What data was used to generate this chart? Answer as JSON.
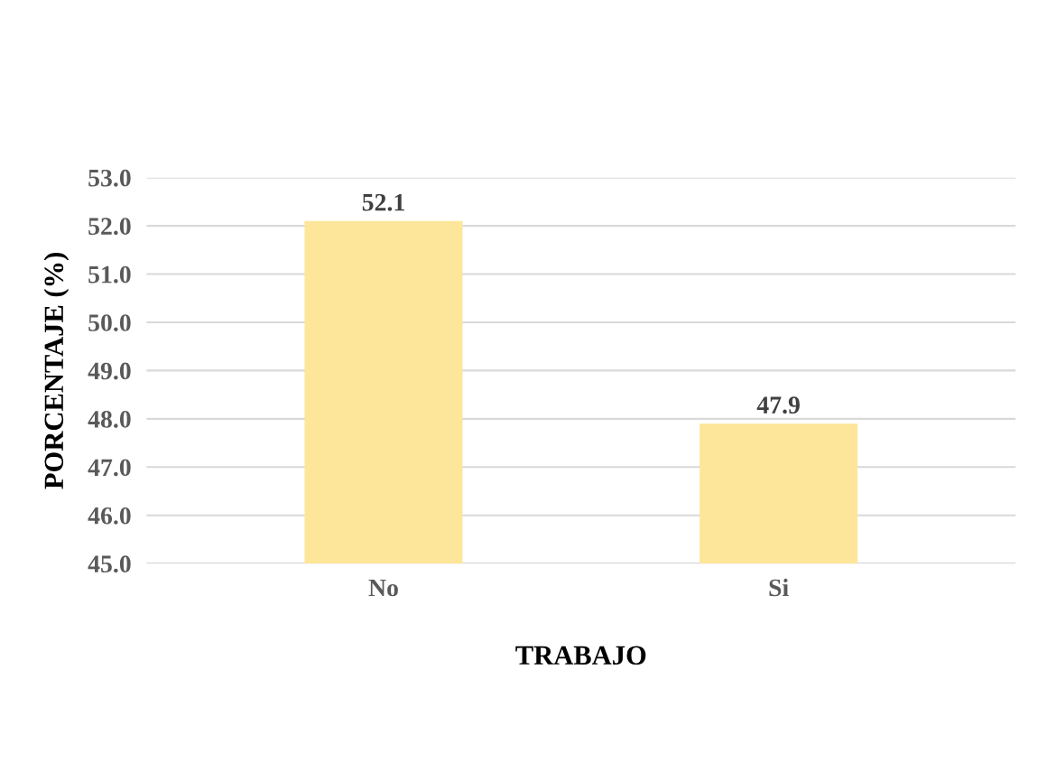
{
  "chart_data": {
    "type": "bar",
    "xlabel": "TRABAJO",
    "ylabel": "PORCENTAJE (%)",
    "categories": [
      "No",
      "Si"
    ],
    "values": [
      52.1,
      47.9
    ],
    "color": "#fde699",
    "ylim": [
      45,
      53
    ],
    "yticks": [
      {
        "value": 45,
        "label": "45.0"
      },
      {
        "value": 46,
        "label": "46.0"
      },
      {
        "value": 47,
        "label": "47.0"
      },
      {
        "value": 48,
        "label": "48.0"
      },
      {
        "value": 49,
        "label": "49.0"
      },
      {
        "value": 50,
        "label": "50.0"
      },
      {
        "value": 51,
        "label": "51.0"
      },
      {
        "value": 52,
        "label": "52.0"
      },
      {
        "value": 53,
        "label": "53.0"
      }
    ],
    "grid": "y",
    "data_labels": true
  }
}
